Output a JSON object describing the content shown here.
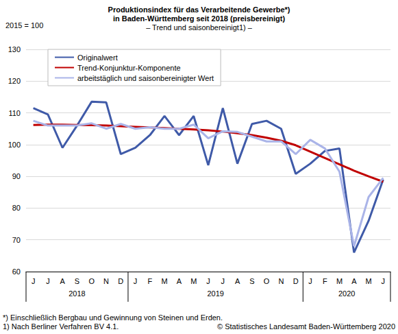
{
  "chart_data": {
    "type": "line",
    "title": "Produktionsindex für das Verarbeitende Gewerbe*)\nin Baden-Württemberg seit 2018 (preisbereinigt)",
    "subtitle": "– Trend und saisonbereinigt1) –",
    "y_label": "2015 = 100",
    "categories": [
      "J",
      "J",
      "A",
      "S",
      "O",
      "N",
      "D",
      "J",
      "F",
      "M",
      "A",
      "M",
      "J",
      "J",
      "A",
      "S",
      "O",
      "N",
      "D",
      "J",
      "F",
      "M",
      "A",
      "M",
      "J"
    ],
    "x_groups": [
      {
        "label": "2018",
        "count": 7
      },
      {
        "label": "2019",
        "count": 12
      },
      {
        "label": "2020",
        "count": 6
      }
    ],
    "series": [
      {
        "name": "Originalwert",
        "color": "#3f5aa8",
        "values": [
          111.5,
          109.5,
          99,
          106,
          113.5,
          113.3,
          97,
          99,
          103,
          109,
          103,
          109,
          93.5,
          111.5,
          94,
          106.5,
          107.5,
          105,
          90.8,
          94,
          98,
          98.8,
          66,
          76,
          89
        ]
      },
      {
        "name": "Trend-Konjunktur-Komponente",
        "color": "#c00000",
        "values": [
          106.2,
          106.3,
          106.3,
          106.2,
          106.1,
          106,
          105.8,
          105.6,
          105.4,
          105.2,
          105,
          104.8,
          104.5,
          104.1,
          103.6,
          103,
          102.2,
          101.2,
          99.8,
          97.8,
          95.8,
          93.8,
          91.8,
          90,
          88.3
        ]
      },
      {
        "name": "arbeitstäglich und saisonbereinigter Wert",
        "color": "#aab4e8",
        "values": [
          107.5,
          106,
          106,
          106,
          106.7,
          105,
          106.5,
          105,
          105.5,
          105,
          105,
          106.3,
          102,
          104.2,
          104,
          102.5,
          101,
          101,
          97,
          101.5,
          98.8,
          91.5,
          68,
          83.5,
          89.5
        ]
      }
    ],
    "ylim": [
      60,
      130
    ],
    "yticks": [
      60,
      70,
      80,
      90,
      100,
      110,
      120,
      130
    ],
    "grid": true,
    "legend": "top-left",
    "footnotes": [
      "*) Einschließlich Bergbau und Gewinnung von Steinen und Erden.",
      "1) Nach Berliner Verfahren BV 4.1."
    ],
    "source": "© Statistisches Landesamt Baden-Württemberg 2020"
  }
}
